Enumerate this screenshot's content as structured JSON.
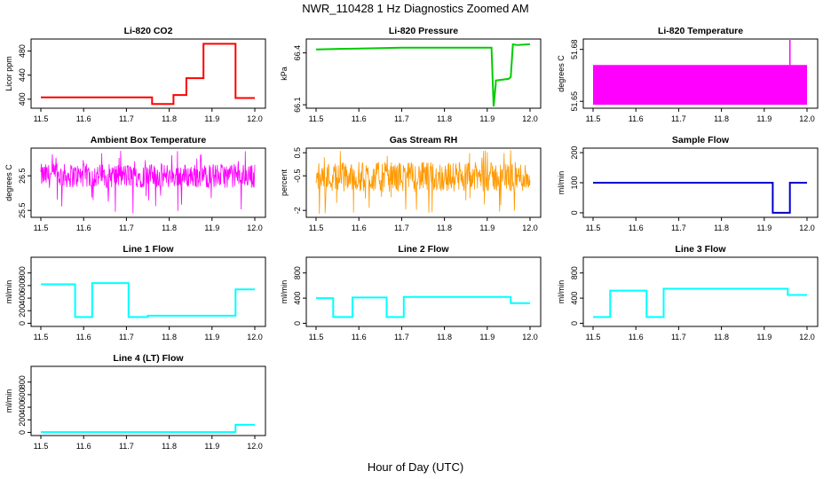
{
  "figure": {
    "title": "NWR_110428  1 Hz Diagnostics Zoomed AM",
    "xlabel": "Hour of Day (UTC)"
  },
  "chart_data": [
    {
      "type": "line",
      "title": "Li-820 CO2",
      "xlabel": "",
      "ylabel": "Licor ppm",
      "xlim": [
        11.5,
        12.0
      ],
      "ylim": [
        385,
        500
      ],
      "xticks": [
        "11.5",
        "11.6",
        "11.7",
        "11.8",
        "11.9",
        "12.0"
      ],
      "yticks": [
        400,
        440,
        480
      ],
      "color": "#ff0000",
      "series": [
        {
          "x": [
            11.5,
            11.76,
            11.76,
            11.81,
            11.81,
            11.84,
            11.84,
            11.88,
            11.88,
            11.955,
            11.955,
            12.0
          ],
          "y": [
            403,
            403,
            392,
            392,
            407,
            407,
            435,
            435,
            492,
            492,
            402,
            402
          ]
        }
      ]
    },
    {
      "type": "line",
      "title": "Li-820 Pressure",
      "xlabel": "",
      "ylabel": "kPa",
      "xlim": [
        11.5,
        12.0
      ],
      "ylim": [
        66.08,
        66.48
      ],
      "xticks": [
        "11.5",
        "11.6",
        "11.7",
        "11.8",
        "11.9",
        "12.0"
      ],
      "yticks": [
        66.1,
        66.4
      ],
      "color": "#00cc00",
      "series": [
        {
          "x": [
            11.5,
            11.6,
            11.7,
            11.8,
            11.88,
            11.91,
            11.915,
            11.92,
            11.92,
            11.95,
            11.955,
            11.96,
            11.97,
            12.0
          ],
          "y": [
            66.42,
            66.425,
            66.43,
            66.43,
            66.43,
            66.43,
            66.09,
            66.22,
            66.24,
            66.25,
            66.26,
            66.45,
            66.445,
            66.45
          ]
        }
      ]
    },
    {
      "type": "area",
      "title": "Li-820 Temperature",
      "xlabel": "",
      "ylabel": "degrees C",
      "xlim": [
        11.5,
        12.0
      ],
      "ylim": [
        51.646,
        51.686
      ],
      "xticks": [
        "11.5",
        "11.6",
        "11.7",
        "11.8",
        "11.9",
        "12.0"
      ],
      "yticks": [
        51.65,
        51.68
      ],
      "color": "#ff00ff",
      "band": {
        "x": [
          11.5,
          12.0
        ],
        "low": 51.648,
        "high": 51.671
      },
      "spike": {
        "x": 11.96,
        "y": 51.687
      }
    },
    {
      "type": "line",
      "title": "Ambient Box Temperature",
      "xlabel": "",
      "ylabel": "degrees C",
      "xlim": [
        11.5,
        12.0
      ],
      "ylim": [
        25.3,
        27.3
      ],
      "xticks": [
        "11.5",
        "11.6",
        "11.7",
        "11.8",
        "11.9",
        "12.0"
      ],
      "yticks": [
        25.5,
        26.5
      ],
      "color": "#ff00ff",
      "noise": {
        "center": 26.5,
        "halfwidth": 0.35,
        "spike_low": 25.4
      }
    },
    {
      "type": "line",
      "title": "Gas Stream RH",
      "xlabel": "",
      "ylabel": "percent",
      "xlim": [
        11.5,
        12.0
      ],
      "ylim": [
        -2.3,
        0.7
      ],
      "xticks": [
        "11.5",
        "11.6",
        "11.7",
        "11.8",
        "11.9",
        "12.0"
      ],
      "yticks": [
        -2.0,
        -0.5,
        0.5
      ],
      "color": "#ff9900",
      "noise": {
        "center": -0.55,
        "halfwidth": 0.65,
        "spike_low": -2.2
      }
    },
    {
      "type": "line",
      "title": "Sample Flow",
      "xlabel": "",
      "ylabel": "ml/min",
      "xlim": [
        11.5,
        12.0
      ],
      "ylim": [
        -15,
        215
      ],
      "xticks": [
        "11.5",
        "11.6",
        "11.7",
        "11.8",
        "11.9",
        "12.0"
      ],
      "yticks": [
        0,
        100,
        200
      ],
      "color": "#0000cc",
      "series": [
        {
          "x": [
            11.5,
            11.9,
            11.92,
            11.92,
            11.96,
            11.96,
            12.0
          ],
          "y": [
            100,
            100,
            100,
            0,
            0,
            100,
            100
          ]
        }
      ]
    },
    {
      "type": "line",
      "title": "Line 1 Flow",
      "xlabel": "",
      "ylabel": "ml/min",
      "xlim": [
        11.5,
        12.0
      ],
      "ylim": [
        -50,
        1050
      ],
      "xticks": [
        "11.5",
        "11.6",
        "11.7",
        "11.8",
        "11.9",
        "12.0"
      ],
      "yticks": [
        0,
        200,
        400,
        600,
        800
      ],
      "color": "#00ffff",
      "series": [
        {
          "x": [
            11.5,
            11.58,
            11.58,
            11.62,
            11.62,
            11.705,
            11.705,
            11.75,
            11.75,
            11.955,
            11.955,
            12.0
          ],
          "y": [
            620,
            620,
            100,
            100,
            640,
            640,
            100,
            100,
            120,
            120,
            540,
            540
          ]
        }
      ]
    },
    {
      "type": "line",
      "title": "Line 2 Flow",
      "xlabel": "",
      "ylabel": "ml/min",
      "xlim": [
        11.5,
        12.0
      ],
      "ylim": [
        -50,
        1050
      ],
      "xticks": [
        "11.5",
        "11.6",
        "11.7",
        "11.8",
        "11.9",
        "12.0"
      ],
      "yticks": [
        0,
        400,
        800
      ],
      "color": "#00ffff",
      "series": [
        {
          "x": [
            11.5,
            11.54,
            11.54,
            11.585,
            11.585,
            11.665,
            11.665,
            11.705,
            11.705,
            11.955,
            11.955,
            12.0
          ],
          "y": [
            400,
            400,
            100,
            100,
            410,
            410,
            100,
            100,
            420,
            420,
            320,
            320
          ]
        }
      ]
    },
    {
      "type": "line",
      "title": "Line 3 Flow",
      "xlabel": "",
      "ylabel": "ml/min",
      "xlim": [
        11.5,
        12.0
      ],
      "ylim": [
        -50,
        1050
      ],
      "xticks": [
        "11.5",
        "11.6",
        "11.7",
        "11.8",
        "11.9",
        "12.0"
      ],
      "yticks": [
        0,
        400,
        800
      ],
      "color": "#00ffff",
      "series": [
        {
          "x": [
            11.5,
            11.54,
            11.54,
            11.625,
            11.625,
            11.665,
            11.665,
            11.955,
            11.955,
            12.0
          ],
          "y": [
            100,
            100,
            520,
            520,
            100,
            100,
            550,
            550,
            450,
            450
          ]
        }
      ]
    },
    {
      "type": "line",
      "title": "Line 4 (LT) Flow",
      "xlabel": "",
      "ylabel": "ml/min",
      "xlim": [
        11.5,
        12.0
      ],
      "ylim": [
        -50,
        1050
      ],
      "xticks": [
        "11.5",
        "11.6",
        "11.7",
        "11.8",
        "11.9",
        "12.0"
      ],
      "yticks": [
        0,
        200,
        400,
        600,
        800
      ],
      "color": "#00ffff",
      "series": [
        {
          "x": [
            11.5,
            11.955,
            11.955,
            12.0
          ],
          "y": [
            5,
            5,
            120,
            120
          ]
        }
      ]
    }
  ]
}
